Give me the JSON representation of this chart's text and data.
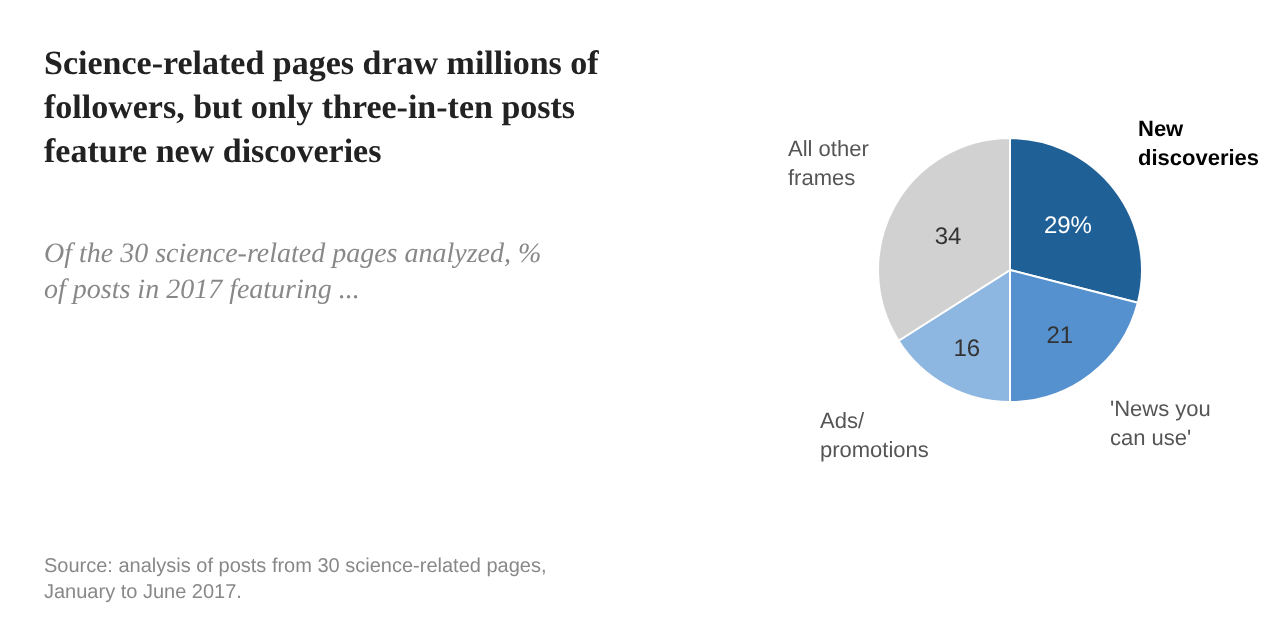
{
  "chart_data": {
    "type": "pie",
    "title": "Science-related pages draw millions of followers, but only three-in-ten posts feature new discoveries",
    "subtitle": "Of the 30 science-related pages analyzed, % of posts in 2017 featuring ...",
    "categories": [
      "New discoveries",
      "'News you can use'",
      "Ads/ promotions",
      "All other frames"
    ],
    "values": [
      29,
      21,
      16,
      34
    ],
    "value_labels": [
      "29%",
      "21",
      "16",
      "34"
    ],
    "colors": [
      "#1f6096",
      "#5590cf",
      "#8db6e0",
      "#d1d1d1"
    ],
    "annotations": [
      "Source: analysis of posts from 30 science-related pages, January to June 2017."
    ],
    "legend": false
  }
}
